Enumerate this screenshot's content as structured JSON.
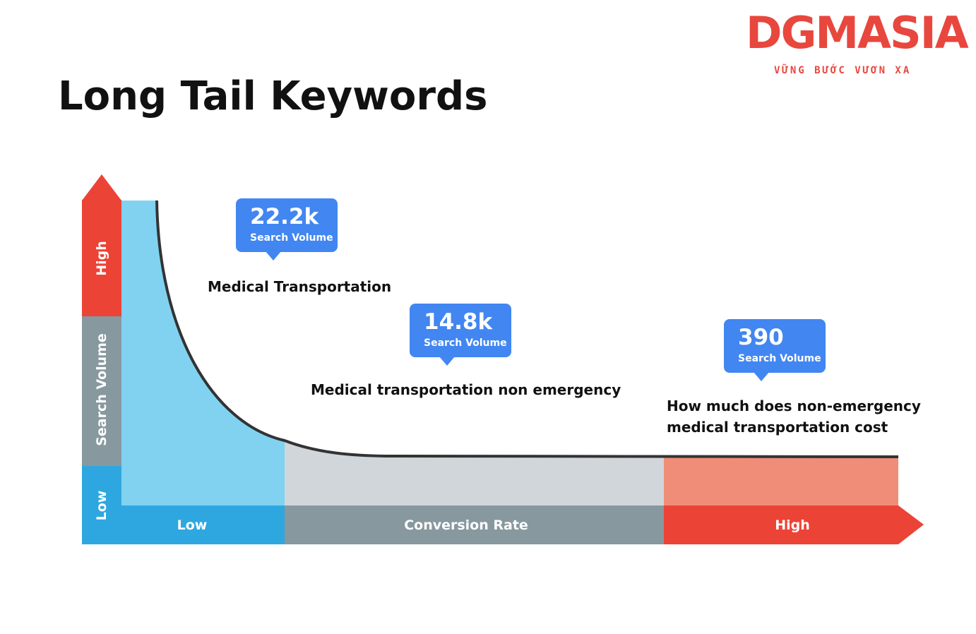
{
  "title": "Long Tail Keywords",
  "logo": {
    "wordmark": "DGMASIA",
    "tagline": "VỮNG BƯỚC VƯƠN XA",
    "color": "#e8473e"
  },
  "y_axis": {
    "high": "High",
    "label": "Search Volume",
    "low": "Low",
    "colors": {
      "high": "#ec4337",
      "mid": "#87989f",
      "low": "#2ea7e0"
    }
  },
  "x_axis": {
    "low": "Low",
    "label": "Conversion Rate",
    "high": "High",
    "colors": {
      "low": "#2ea7e0",
      "mid": "#87989f",
      "high": "#ec4337"
    }
  },
  "keywords": [
    {
      "value": "22.2k",
      "unit": "Search Volume",
      "lines": [
        "Medical Transportation"
      ]
    },
    {
      "value": "14.8k",
      "unit": "Search Volume",
      "lines": [
        "Medical transportation non emergency"
      ]
    },
    {
      "value": "390",
      "unit": "Search Volume",
      "lines": [
        "How much does non-emergency",
        "medical transportation cost"
      ]
    }
  ],
  "colors": {
    "region_head": "#80d2f0",
    "region_middle": "#d1d6da",
    "region_tail": "#ef8d78",
    "bubble": "#4286f1",
    "curve": "#333333"
  }
}
